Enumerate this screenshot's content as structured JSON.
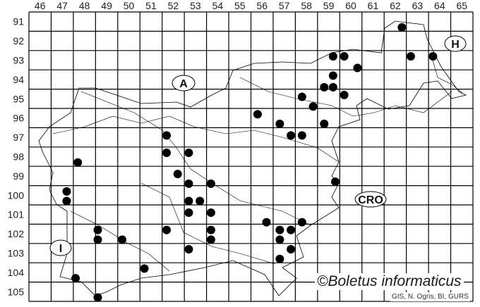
{
  "map": {
    "column_labels": [
      "46",
      "47",
      "48",
      "49",
      "50",
      "51",
      "52",
      "53",
      "54",
      "55",
      "56",
      "57",
      "58",
      "59",
      "60",
      "61",
      "62",
      "63",
      "64",
      "65"
    ],
    "row_labels": [
      "91",
      "92",
      "93",
      "94",
      "95",
      "96",
      "97",
      "98",
      "99",
      "100",
      "101",
      "102",
      "103",
      "104",
      "105"
    ],
    "country_labels": {
      "austria": "A",
      "hungary": "H",
      "croatia": "CRO",
      "italy": "I"
    },
    "dot_color": "#000000",
    "records": [
      [
        62.8,
        91.8
      ],
      [
        63.2,
        93.3
      ],
      [
        64.2,
        93.3
      ],
      [
        59.7,
        93.3
      ],
      [
        60.2,
        93.3
      ],
      [
        60.8,
        93.9
      ],
      [
        59.7,
        94.3
      ],
      [
        59.3,
        94.9
      ],
      [
        59.7,
        94.9
      ],
      [
        60.2,
        95.3
      ],
      [
        58.3,
        95.4
      ],
      [
        58.8,
        95.9
      ],
      [
        56.3,
        96.3
      ],
      [
        57.3,
        96.8
      ],
      [
        59.3,
        96.8
      ],
      [
        57.8,
        97.4
      ],
      [
        58.3,
        97.4
      ],
      [
        52.2,
        97.4
      ],
      [
        52.2,
        98.3
      ],
      [
        53.2,
        98.3
      ],
      [
        48.2,
        98.8
      ],
      [
        52.7,
        99.4
      ],
      [
        53.2,
        99.9
      ],
      [
        54.2,
        99.9
      ],
      [
        59.8,
        99.8
      ],
      [
        47.7,
        100.3
      ],
      [
        47.7,
        100.8
      ],
      [
        53.2,
        100.8
      ],
      [
        53.7,
        100.8
      ],
      [
        53.2,
        101.4
      ],
      [
        54.2,
        101.4
      ],
      [
        56.7,
        101.9
      ],
      [
        58.3,
        101.9
      ],
      [
        49.1,
        102.3
      ],
      [
        52.2,
        102.3
      ],
      [
        54.2,
        102.3
      ],
      [
        57.3,
        102.3
      ],
      [
        57.8,
        102.3
      ],
      [
        49.1,
        102.8
      ],
      [
        50.2,
        102.8
      ],
      [
        54.2,
        102.8
      ],
      [
        57.3,
        102.8
      ],
      [
        53.2,
        103.3
      ],
      [
        57.8,
        103.3
      ],
      [
        57.3,
        103.8
      ],
      [
        51.2,
        104.3
      ],
      [
        48.1,
        104.8
      ],
      [
        49.1,
        105.8
      ]
    ]
  },
  "copyright": "©Boletus informaticus",
  "credits": "GIS, N. Ogris, BI, GURS"
}
